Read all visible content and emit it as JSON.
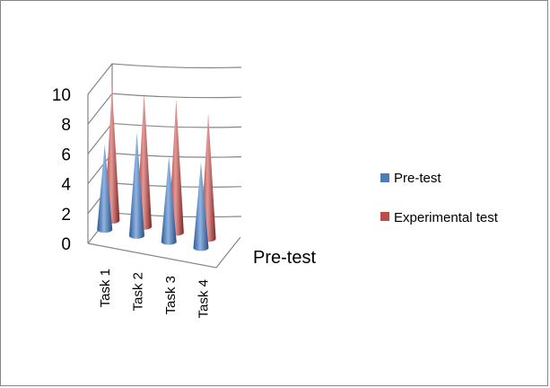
{
  "chart_data": {
    "type": "bar",
    "subtype": "3d-cone",
    "categories": [
      "Task 1",
      "Task 2",
      "Task 3",
      "Task 4"
    ],
    "series": [
      {
        "name": "Pre-test",
        "values": [
          5,
          6,
          5,
          5
        ],
        "color": "#4a7ebb"
      },
      {
        "name": "Experimental test",
        "values": [
          8,
          8,
          8,
          7.5
        ],
        "color": "#be4b48"
      }
    ],
    "y_ticks": [
      "0",
      "2",
      "4",
      "6",
      "8",
      "10"
    ],
    "ylim": [
      0,
      10
    ],
    "depth_axis_label": "Pre-test",
    "grid": true,
    "legend_position": "right"
  }
}
